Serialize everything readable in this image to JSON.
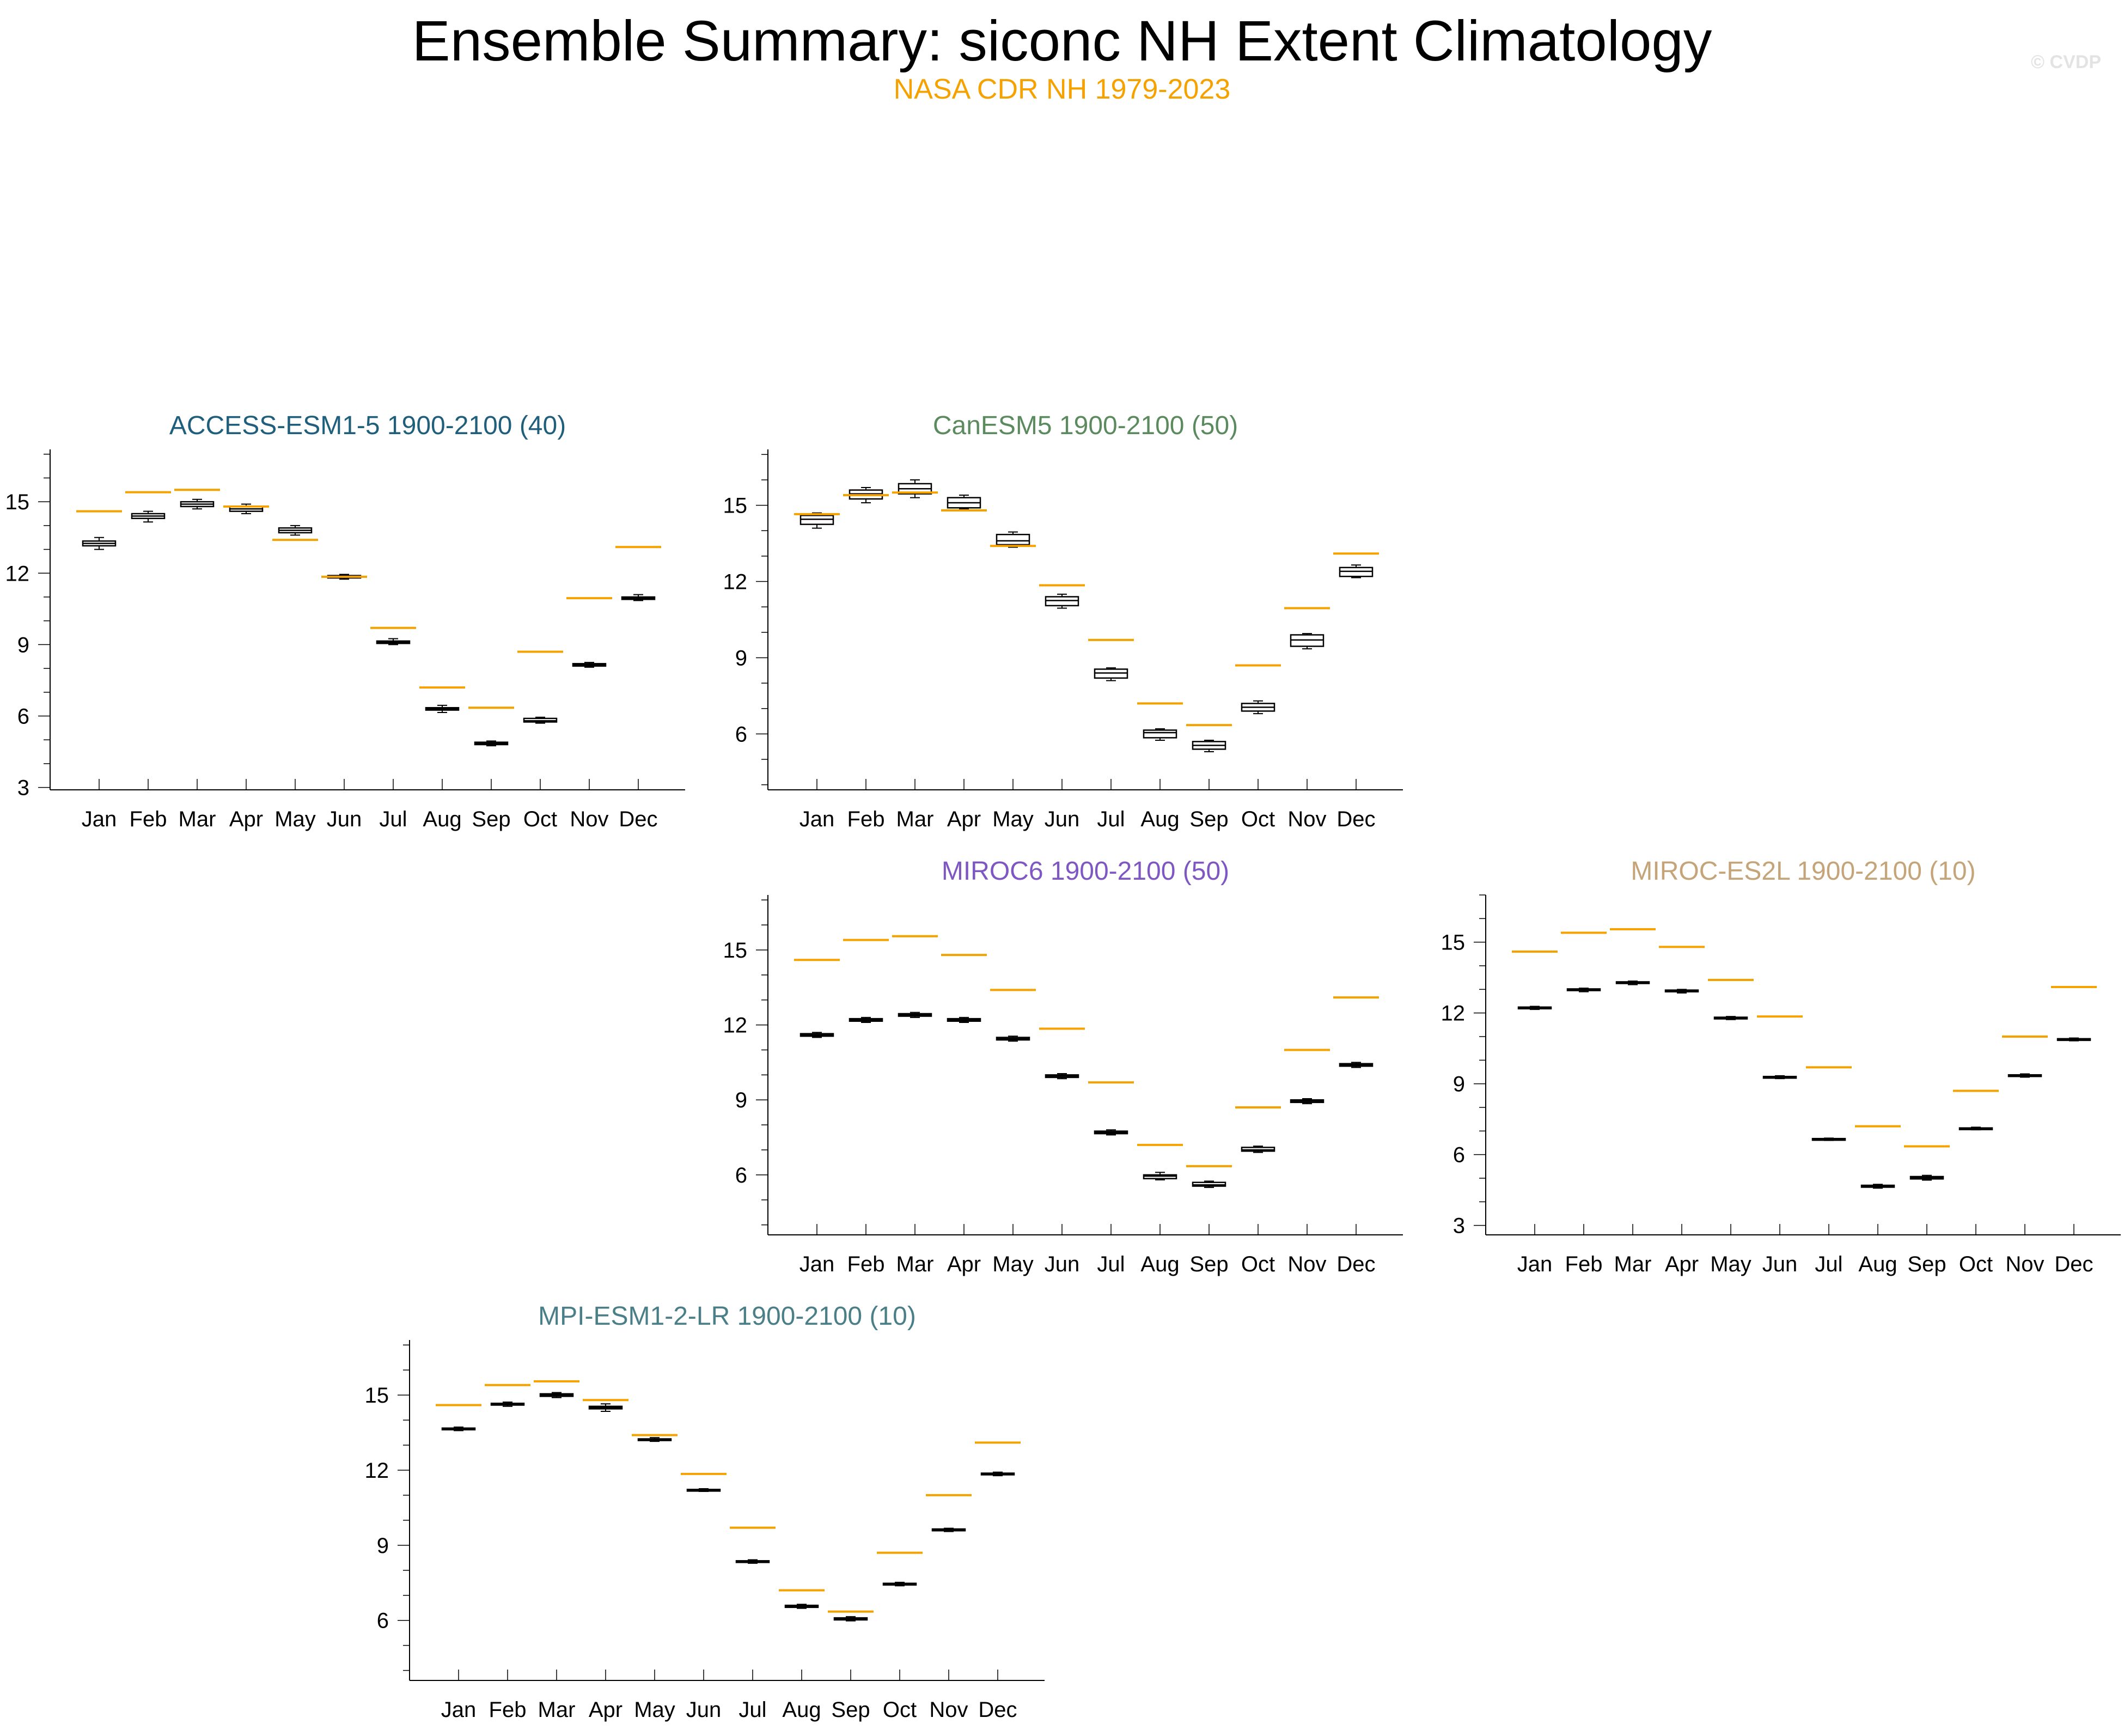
{
  "header": {
    "title": "Ensemble Summary: siconc NH Extent Climatology",
    "subtitle": "NASA CDR NH 1979-2023",
    "subtitle_color": "#f5a200",
    "watermark": "© CVDP"
  },
  "colors": {
    "observation_line": "#f5a200",
    "box_stroke": "#000000",
    "box_fill": "#ffffff",
    "axis": "#000000"
  },
  "chart_data": [
    {
      "type": "box",
      "title": "ACCESS-ESM1-5 1900-2100 (40)",
      "title_color": "#1f5f7c",
      "categories": [
        "Jan",
        "Feb",
        "Mar",
        "Apr",
        "May",
        "Jun",
        "Jul",
        "Aug",
        "Sep",
        "Oct",
        "Nov",
        "Dec"
      ],
      "ylim": [
        2.9,
        17.2
      ],
      "yticks": [
        3,
        6,
        9,
        12,
        15
      ],
      "observation": [
        14.6,
        15.4,
        15.5,
        14.8,
        13.4,
        11.85,
        9.7,
        7.2,
        6.35,
        8.7,
        10.95,
        13.1
      ],
      "boxes": [
        {
          "min": 13.0,
          "q1": 13.15,
          "median": 13.25,
          "q3": 13.35,
          "max": 13.5
        },
        {
          "min": 14.15,
          "q1": 14.3,
          "median": 14.4,
          "q3": 14.5,
          "max": 14.6
        },
        {
          "min": 14.7,
          "q1": 14.8,
          "median": 14.9,
          "q3": 15.0,
          "max": 15.1
        },
        {
          "min": 14.5,
          "q1": 14.6,
          "median": 14.7,
          "q3": 14.8,
          "max": 14.9
        },
        {
          "min": 13.6,
          "q1": 13.7,
          "median": 13.8,
          "q3": 13.9,
          "max": 14.0
        },
        {
          "min": 11.75,
          "q1": 11.8,
          "median": 11.85,
          "q3": 11.9,
          "max": 11.95
        },
        {
          "min": 9.0,
          "q1": 9.05,
          "median": 9.1,
          "q3": 9.15,
          "max": 9.25
        },
        {
          "min": 6.15,
          "q1": 6.25,
          "median": 6.3,
          "q3": 6.35,
          "max": 6.45
        },
        {
          "min": 4.75,
          "q1": 4.8,
          "median": 4.85,
          "q3": 4.9,
          "max": 4.95
        },
        {
          "min": 5.7,
          "q1": 5.75,
          "median": 5.8,
          "q3": 5.9,
          "max": 5.95
        },
        {
          "min": 8.05,
          "q1": 8.1,
          "median": 8.15,
          "q3": 8.2,
          "max": 8.25
        },
        {
          "min": 10.85,
          "q1": 10.9,
          "median": 10.95,
          "q3": 11.0,
          "max": 11.1
        }
      ]
    },
    {
      "type": "box",
      "title": "CanESM5 1900-2100 (50)",
      "title_color": "#5b8a5e",
      "categories": [
        "Jan",
        "Feb",
        "Mar",
        "Apr",
        "May",
        "Jun",
        "Jul",
        "Aug",
        "Sep",
        "Oct",
        "Nov",
        "Dec"
      ],
      "ylim": [
        3.8,
        17.2
      ],
      "yticks": [
        6,
        9,
        12,
        15
      ],
      "observation": [
        14.65,
        15.4,
        15.5,
        14.8,
        13.4,
        11.85,
        9.7,
        7.2,
        6.35,
        8.7,
        10.95,
        13.1
      ],
      "boxes": [
        {
          "min": 14.1,
          "q1": 14.25,
          "median": 14.45,
          "q3": 14.6,
          "max": 14.7
        },
        {
          "min": 15.1,
          "q1": 15.25,
          "median": 15.45,
          "q3": 15.6,
          "max": 15.7
        },
        {
          "min": 15.3,
          "q1": 15.45,
          "median": 15.65,
          "q3": 15.85,
          "max": 16.0
        },
        {
          "min": 14.85,
          "q1": 14.9,
          "median": 15.1,
          "q3": 15.3,
          "max": 15.4
        },
        {
          "min": 13.35,
          "q1": 13.45,
          "median": 13.6,
          "q3": 13.85,
          "max": 13.95
        },
        {
          "min": 10.95,
          "q1": 11.05,
          "median": 11.25,
          "q3": 11.4,
          "max": 11.5
        },
        {
          "min": 8.1,
          "q1": 8.2,
          "median": 8.4,
          "q3": 8.55,
          "max": 8.6
        },
        {
          "min": 5.75,
          "q1": 5.85,
          "median": 6.05,
          "q3": 6.15,
          "max": 6.2
        },
        {
          "min": 5.3,
          "q1": 5.4,
          "median": 5.55,
          "q3": 5.7,
          "max": 5.75
        },
        {
          "min": 6.8,
          "q1": 6.9,
          "median": 7.05,
          "q3": 7.2,
          "max": 7.3
        },
        {
          "min": 9.35,
          "q1": 9.45,
          "median": 9.7,
          "q3": 9.9,
          "max": 9.95
        },
        {
          "min": 12.15,
          "q1": 12.2,
          "median": 12.4,
          "q3": 12.55,
          "max": 12.65
        }
      ]
    },
    {
      "type": "box",
      "title": "MIROC6 1900-2100 (50)",
      "title_color": "#7e57c2",
      "categories": [
        "Jan",
        "Feb",
        "Mar",
        "Apr",
        "May",
        "Jun",
        "Jul",
        "Aug",
        "Sep",
        "Oct",
        "Nov",
        "Dec"
      ],
      "ylim": [
        3.6,
        17.2
      ],
      "yticks": [
        6,
        9,
        12,
        15
      ],
      "observation": [
        14.6,
        15.4,
        15.55,
        14.8,
        13.4,
        11.85,
        9.7,
        7.2,
        6.35,
        8.7,
        11.0,
        13.1
      ],
      "boxes": [
        {
          "min": 11.5,
          "q1": 11.55,
          "median": 11.6,
          "q3": 11.65,
          "max": 11.7
        },
        {
          "min": 12.1,
          "q1": 12.15,
          "median": 12.2,
          "q3": 12.25,
          "max": 12.3
        },
        {
          "min": 12.3,
          "q1": 12.35,
          "median": 12.4,
          "q3": 12.45,
          "max": 12.5
        },
        {
          "min": 12.1,
          "q1": 12.15,
          "median": 12.2,
          "q3": 12.25,
          "max": 12.3
        },
        {
          "min": 11.35,
          "q1": 11.4,
          "median": 11.45,
          "q3": 11.5,
          "max": 11.55
        },
        {
          "min": 9.85,
          "q1": 9.9,
          "median": 9.95,
          "q3": 10.0,
          "max": 10.05
        },
        {
          "min": 7.6,
          "q1": 7.65,
          "median": 7.7,
          "q3": 7.75,
          "max": 7.8
        },
        {
          "min": 5.8,
          "q1": 5.85,
          "median": 5.95,
          "q3": 6.0,
          "max": 6.1
        },
        {
          "min": 5.5,
          "q1": 5.55,
          "median": 5.6,
          "q3": 5.7,
          "max": 5.75
        },
        {
          "min": 6.9,
          "q1": 6.95,
          "median": 7.0,
          "q3": 7.1,
          "max": 7.15
        },
        {
          "min": 8.85,
          "q1": 8.9,
          "median": 8.95,
          "q3": 9.0,
          "max": 9.05
        },
        {
          "min": 10.3,
          "q1": 10.35,
          "median": 10.4,
          "q3": 10.45,
          "max": 10.5
        }
      ]
    },
    {
      "type": "box",
      "title": "MIROC-ES2L 1900-2100 (10)",
      "title_color": "#c4a478",
      "categories": [
        "Jan",
        "Feb",
        "Mar",
        "Apr",
        "May",
        "Jun",
        "Jul",
        "Aug",
        "Sep",
        "Oct",
        "Nov",
        "Dec"
      ],
      "ylim": [
        2.6,
        17.0
      ],
      "yticks": [
        3,
        6,
        9,
        12,
        15
      ],
      "observation": [
        14.6,
        15.4,
        15.55,
        14.8,
        13.4,
        11.85,
        9.7,
        7.2,
        6.35,
        8.7,
        11.0,
        13.1
      ],
      "boxes": [
        {
          "min": 12.15,
          "q1": 12.18,
          "median": 12.2,
          "q3": 12.25,
          "max": 12.28
        },
        {
          "min": 12.9,
          "q1": 12.95,
          "median": 12.98,
          "q3": 13.02,
          "max": 13.05
        },
        {
          "min": 13.2,
          "q1": 13.25,
          "median": 13.28,
          "q3": 13.32,
          "max": 13.35
        },
        {
          "min": 12.85,
          "q1": 12.9,
          "median": 12.93,
          "q3": 12.97,
          "max": 13.0
        },
        {
          "min": 11.72,
          "q1": 11.75,
          "median": 11.78,
          "q3": 11.82,
          "max": 11.85
        },
        {
          "min": 9.22,
          "q1": 9.25,
          "median": 9.28,
          "q3": 9.31,
          "max": 9.34
        },
        {
          "min": 6.6,
          "q1": 6.63,
          "median": 6.65,
          "q3": 6.68,
          "max": 6.7
        },
        {
          "min": 4.58,
          "q1": 4.62,
          "median": 4.66,
          "q3": 4.7,
          "max": 4.74
        },
        {
          "min": 4.92,
          "q1": 4.97,
          "median": 5.02,
          "q3": 5.07,
          "max": 5.12
        },
        {
          "min": 7.05,
          "q1": 7.08,
          "median": 7.1,
          "q3": 7.13,
          "max": 7.16
        },
        {
          "min": 9.28,
          "q1": 9.32,
          "median": 9.35,
          "q3": 9.38,
          "max": 9.42
        },
        {
          "min": 10.82,
          "q1": 10.85,
          "median": 10.88,
          "q3": 10.91,
          "max": 10.94
        }
      ]
    },
    {
      "type": "box",
      "title": "MPI-ESM1-2-LR 1900-2100 (10)",
      "title_color": "#4a7f87",
      "categories": [
        "Jan",
        "Feb",
        "Mar",
        "Apr",
        "May",
        "Jun",
        "Jul",
        "Aug",
        "Sep",
        "Oct",
        "Nov",
        "Dec"
      ],
      "ylim": [
        3.6,
        17.2
      ],
      "yticks": [
        6,
        9,
        12,
        15
      ],
      "observation": [
        14.6,
        15.4,
        15.55,
        14.8,
        13.4,
        11.85,
        9.7,
        7.2,
        6.35,
        8.7,
        11.0,
        13.1
      ],
      "boxes": [
        {
          "min": 13.58,
          "q1": 13.62,
          "median": 13.65,
          "q3": 13.68,
          "max": 13.72
        },
        {
          "min": 14.55,
          "q1": 14.6,
          "median": 14.63,
          "q3": 14.67,
          "max": 14.72
        },
        {
          "min": 14.9,
          "q1": 14.95,
          "median": 15.0,
          "q3": 15.05,
          "max": 15.1
        },
        {
          "min": 14.35,
          "q1": 14.45,
          "median": 14.5,
          "q3": 14.55,
          "max": 14.65
        },
        {
          "min": 13.15,
          "q1": 13.2,
          "median": 13.22,
          "q3": 13.25,
          "max": 13.3
        },
        {
          "min": 11.15,
          "q1": 11.18,
          "median": 11.2,
          "q3": 11.23,
          "max": 11.26
        },
        {
          "min": 8.28,
          "q1": 8.32,
          "median": 8.35,
          "q3": 8.38,
          "max": 8.42
        },
        {
          "min": 6.48,
          "q1": 6.52,
          "median": 6.55,
          "q3": 6.6,
          "max": 6.64
        },
        {
          "min": 5.98,
          "q1": 6.02,
          "median": 6.06,
          "q3": 6.1,
          "max": 6.15
        },
        {
          "min": 7.38,
          "q1": 7.42,
          "median": 7.45,
          "q3": 7.48,
          "max": 7.52
        },
        {
          "min": 9.55,
          "q1": 9.58,
          "median": 9.62,
          "q3": 9.65,
          "max": 9.68
        },
        {
          "min": 11.78,
          "q1": 11.82,
          "median": 11.85,
          "q3": 11.88,
          "max": 11.92
        }
      ]
    }
  ]
}
